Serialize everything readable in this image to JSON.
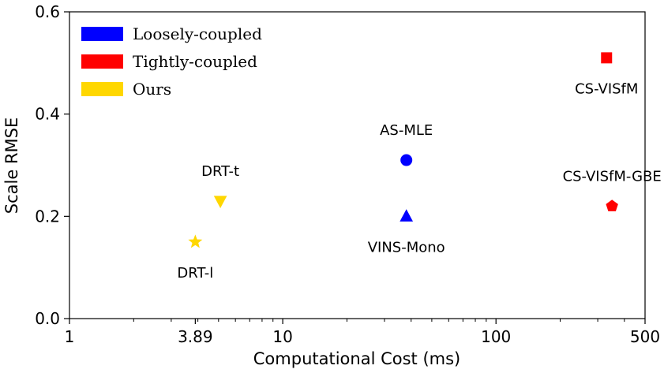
{
  "chart_data": {
    "type": "scatter",
    "title": "",
    "xlabel": "Computational Cost (ms)",
    "ylabel": "Scale RMSE",
    "xscale": "log",
    "xlim": [
      1,
      500
    ],
    "ylim": [
      0.0,
      0.6
    ],
    "xticks": [
      {
        "value": 1,
        "label": "1"
      },
      {
        "value": 3.89,
        "label": "3.89"
      },
      {
        "value": 10,
        "label": "10"
      },
      {
        "value": 100,
        "label": "100"
      },
      {
        "value": 500,
        "label": "500"
      }
    ],
    "yticks": [
      {
        "value": 0.0,
        "label": "0.0"
      },
      {
        "value": 0.2,
        "label": "0.2"
      },
      {
        "value": 0.4,
        "label": "0.4"
      },
      {
        "value": 0.6,
        "label": "0.6"
      }
    ],
    "legend": {
      "placement": "top-left",
      "entries": [
        {
          "label": "Loosely-coupled",
          "color": "#0000ff"
        },
        {
          "label": "Tightly-coupled",
          "color": "#ff0000"
        },
        {
          "label": "Ours",
          "color": "#ffd700"
        }
      ]
    },
    "points": [
      {
        "name": "AS-MLE",
        "x": 38,
        "y": 0.31,
        "group": "Loosely-coupled",
        "marker": "circle",
        "color": "#0000ff",
        "label_pos": "above"
      },
      {
        "name": "VINS-Mono",
        "x": 38,
        "y": 0.2,
        "group": "Loosely-coupled",
        "marker": "triangle-up",
        "color": "#0000ff",
        "label_pos": "below"
      },
      {
        "name": "CS-VISfM",
        "x": 330,
        "y": 0.51,
        "group": "Tightly-coupled",
        "marker": "square",
        "color": "#ff0000",
        "label_pos": "below"
      },
      {
        "name": "CS-VISfM-GBE",
        "x": 350,
        "y": 0.22,
        "group": "Tightly-coupled",
        "marker": "pentagon",
        "color": "#ff0000",
        "label_pos": "above"
      },
      {
        "name": "DRT-t",
        "x": 5.1,
        "y": 0.23,
        "group": "Ours",
        "marker": "triangle-down",
        "color": "#ffd700",
        "label_pos": "above"
      },
      {
        "name": "DRT-l",
        "x": 3.89,
        "y": 0.15,
        "group": "Ours",
        "marker": "star",
        "color": "#ffd700",
        "label_pos": "below"
      }
    ]
  }
}
